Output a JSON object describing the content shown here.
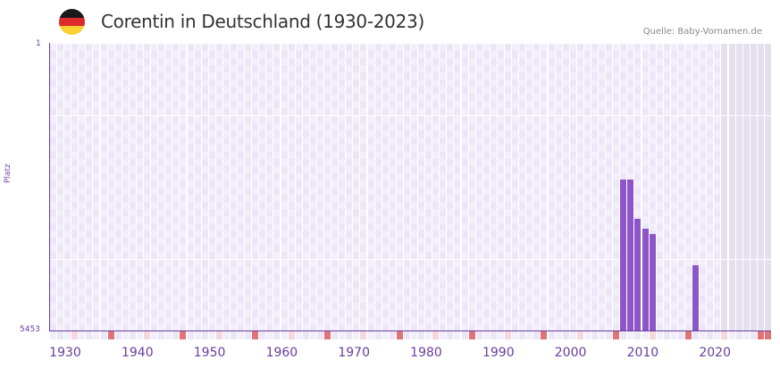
{
  "header": {
    "title": "Corentin in Deutschland (1930-2023)",
    "source": "Quelle: Baby-Vornamen.de",
    "flag": [
      "#1a1a1a",
      "#dd2a2a",
      "#fcd02e"
    ]
  },
  "axis": {
    "y_top": "1",
    "y_bottom": "5453",
    "y_title": "Platz"
  },
  "colors": {
    "bar": "#8e55c9",
    "axis": "#6a3d9a",
    "decade_tick": "#e0737a",
    "mid_tick": "#f6d6df",
    "grid_a": "#f2eefb",
    "grid_b": "#ece6f7",
    "future_shade": "#e4e0ee"
  },
  "chart_data": {
    "type": "bar",
    "title": "Corentin in Deutschland (1930-2023)",
    "xlabel": "",
    "ylabel": "Platz",
    "ylim": [
      5453,
      1
    ],
    "x_range": [
      1930,
      2029
    ],
    "x_ticks": [
      "1930",
      "1940",
      "1950",
      "1960",
      "1970",
      "1980",
      "1990",
      "2000",
      "2010",
      "2020"
    ],
    "series": [
      {
        "name": "Corentin",
        "x": [
          2009,
          2010,
          2011,
          2012,
          2013,
          2019
        ],
        "values": [
          2600,
          2600,
          3330,
          3530,
          3630,
          4210
        ]
      }
    ]
  }
}
